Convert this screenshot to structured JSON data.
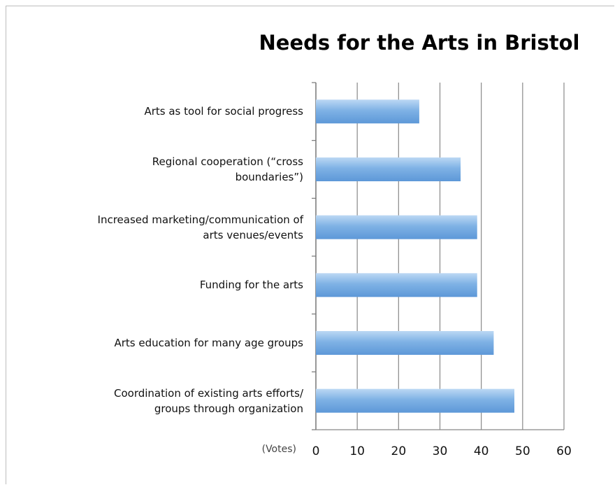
{
  "chart_data": {
    "type": "bar",
    "orientation": "horizontal",
    "title": "Needs for the Arts in Bristol",
    "xlabel": "(Votes)",
    "ylabel": "",
    "xlim": [
      0,
      60
    ],
    "xticks": [
      0,
      10,
      20,
      30,
      40,
      50,
      60
    ],
    "grid": "vertical",
    "categories": [
      "Arts as tool for social progress",
      "Regional cooperation (“cross boundaries”)",
      "Increased marketing/communication of arts venues/events",
      "Funding for the arts",
      "Arts education for many age groups",
      "Coordination of existing arts efforts/ groups through organization"
    ],
    "category_lines": [
      [
        "Arts as tool for social progress"
      ],
      [
        "Regional cooperation (“cross",
        "boundaries”)"
      ],
      [
        "Increased marketing/communication of",
        "arts venues/events"
      ],
      [
        "Funding for the arts"
      ],
      [
        "Arts education for many age groups"
      ],
      [
        "Coordination of existing arts efforts/",
        "groups through organization"
      ]
    ],
    "values": [
      25,
      35,
      39,
      39,
      43,
      48
    ],
    "bar_color": "#7fb2e5"
  }
}
